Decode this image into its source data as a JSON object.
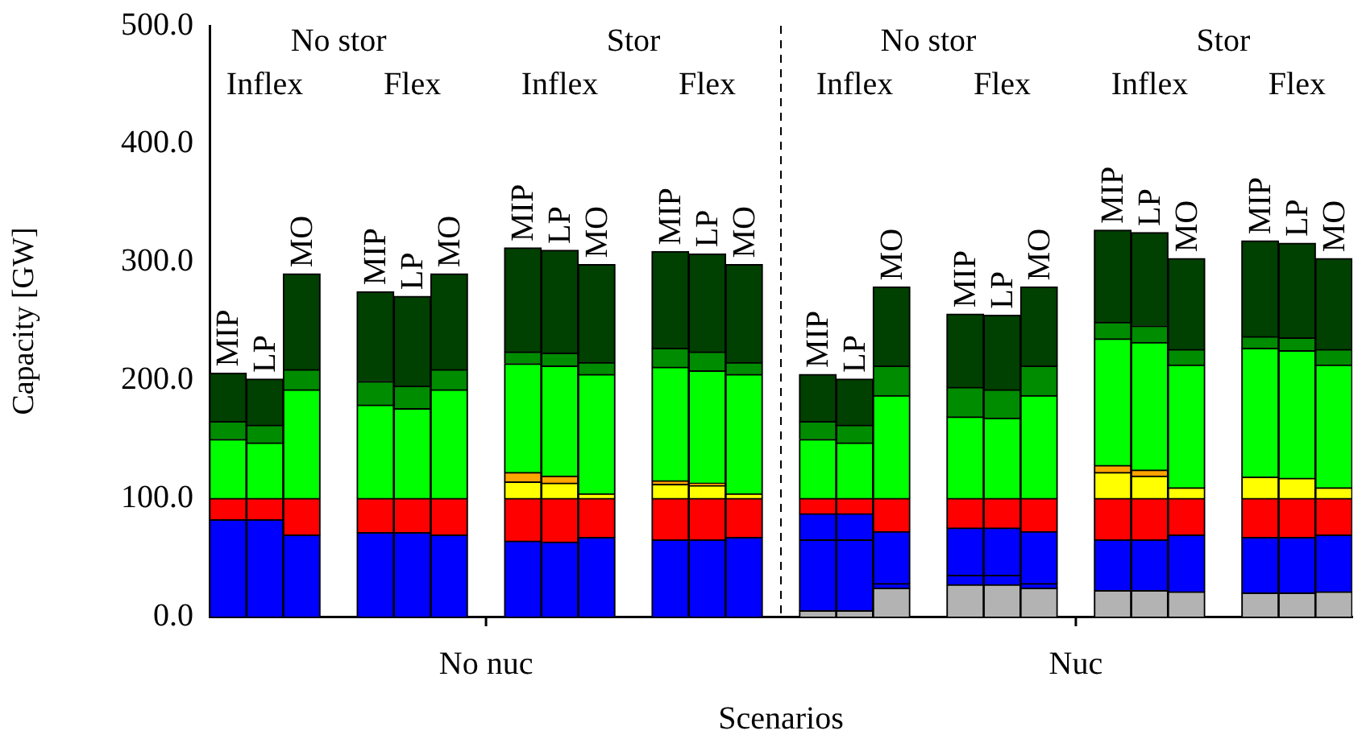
{
  "chart_data": {
    "type": "bar",
    "stacked": true,
    "xlabel": "Scenarios",
    "ylabel": "Capacity [GW]",
    "categories": [
      "MIP",
      "LP",
      "MO",
      null,
      "MIP",
      "LP",
      "MO",
      null,
      "MIP",
      "LP",
      "MO",
      null,
      "MIP",
      "LP",
      "MO",
      null,
      "MIP",
      "LP",
      "MO",
      null,
      "MIP",
      "LP",
      "MO",
      null,
      "MIP",
      "LP",
      "MO",
      null,
      "MIP",
      "LP",
      "MO"
    ],
    "ylim": [
      0,
      500
    ],
    "yticks": [
      {
        "value": 0,
        "label": "0.0"
      },
      {
        "value": 100,
        "label": "100.0"
      },
      {
        "value": 200,
        "label": "200.0"
      },
      {
        "value": 300,
        "label": "300.0"
      },
      {
        "value": 400,
        "label": "400.0"
      },
      {
        "value": 500,
        "label": "500.0"
      }
    ],
    "series": [
      {
        "color": "#b3b3b3",
        "values": [
          null,
          null,
          null,
          null,
          null,
          null,
          null,
          null,
          null,
          null,
          null,
          null,
          null,
          null,
          null,
          null,
          5,
          5,
          24,
          null,
          27,
          27,
          24,
          null,
          22,
          22,
          21,
          null,
          20,
          20,
          21
        ]
      },
      {
        "color": "#0000ff",
        "values": [
          null,
          null,
          null,
          null,
          null,
          null,
          null,
          null,
          null,
          null,
          null,
          null,
          null,
          null,
          null,
          null,
          60,
          60,
          4,
          null,
          8,
          8,
          4,
          null,
          null,
          null,
          null,
          null,
          null,
          null,
          null
        ]
      },
      {
        "color": "#0000ff",
        "values": [
          82,
          82,
          69,
          null,
          71,
          71,
          69,
          null,
          64,
          63,
          67,
          null,
          65,
          65,
          67,
          null,
          22,
          22,
          44,
          null,
          40,
          40,
          44,
          null,
          43,
          43,
          48,
          null,
          47,
          47,
          48
        ]
      },
      {
        "color": "#ff0000",
        "values": [
          18,
          18,
          31,
          null,
          29,
          29,
          31,
          null,
          36,
          37,
          33,
          null,
          35,
          35,
          33,
          null,
          13,
          13,
          28,
          null,
          25,
          25,
          28,
          null,
          35,
          35,
          31,
          null,
          33,
          33,
          31
        ]
      },
      {
        "color": "#ffff00",
        "values": [
          null,
          null,
          null,
          null,
          null,
          null,
          null,
          null,
          14,
          13,
          4,
          null,
          12,
          11,
          4,
          null,
          null,
          null,
          null,
          null,
          null,
          null,
          null,
          null,
          22,
          19,
          9,
          null,
          18,
          17,
          9
        ]
      },
      {
        "color": "#ffa500",
        "values": [
          null,
          null,
          null,
          null,
          null,
          null,
          null,
          null,
          8,
          6,
          null,
          null,
          3,
          2,
          null,
          null,
          null,
          null,
          null,
          null,
          null,
          null,
          null,
          null,
          6,
          5,
          null,
          null,
          null,
          null,
          null
        ]
      },
      {
        "color": "#00ff00",
        "values": [
          50,
          47,
          92,
          null,
          79,
          76,
          92,
          null,
          92,
          93,
          101,
          null,
          96,
          95,
          101,
          null,
          50,
          47,
          87,
          null,
          69,
          68,
          87,
          null,
          107,
          108,
          104,
          null,
          109,
          108,
          104
        ]
      },
      {
        "color": "#008c00",
        "values": [
          15,
          15,
          17,
          null,
          20,
          19,
          17,
          null,
          10,
          11,
          10,
          null,
          16,
          16,
          10,
          null,
          15,
          15,
          25,
          null,
          25,
          24,
          25,
          null,
          14,
          14,
          13,
          null,
          10,
          11,
          13
        ]
      },
      {
        "color": "#004000",
        "values": [
          41,
          39,
          81,
          null,
          76,
          76,
          81,
          null,
          88,
          87,
          83,
          null,
          82,
          83,
          83,
          null,
          40,
          39,
          67,
          null,
          62,
          63,
          67,
          null,
          78,
          79,
          77,
          null,
          81,
          80,
          77
        ]
      }
    ],
    "annotations": [
      "No nuc",
      "Nuc",
      "No stor",
      "Stor",
      "No stor",
      "Stor",
      "Inflex",
      "Flex",
      "Inflex",
      "Flex",
      "Inflex",
      "Flex",
      "Inflex",
      "Flex"
    ]
  }
}
